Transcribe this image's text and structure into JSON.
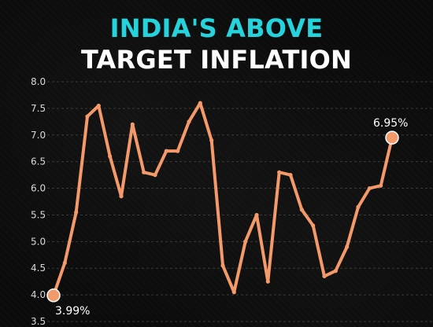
{
  "title": {
    "line1": "INDIA'S ABOVE",
    "line2": "TARGET INFLATION"
  },
  "colors": {
    "background": "#0b0b0b",
    "title_accent": "#25d3dc",
    "title_main": "#ffffff",
    "series": "#f4996a",
    "grid": "#3a3a3a",
    "tick_text": "#d9d9d9"
  },
  "chart_data": {
    "type": "line",
    "title": "INDIA'S ABOVE TARGET INFLATION",
    "xlabel": "",
    "ylabel": "",
    "ylim": [
      3.5,
      8.0
    ],
    "y_ticks": [
      "8.0",
      "7.5",
      "7.0",
      "6.5",
      "6.0",
      "5.5",
      "5.0",
      "4.5",
      "4.0",
      "3.5"
    ],
    "grid": true,
    "legend": "none",
    "series": [
      {
        "values": [
          3.99,
          4.6,
          5.55,
          7.35,
          7.55,
          6.6,
          5.85,
          7.2,
          6.3,
          6.25,
          6.7,
          6.7,
          7.25,
          7.6,
          6.9,
          4.55,
          4.05,
          5.0,
          5.5,
          4.25,
          6.3,
          6.25,
          5.6,
          5.3,
          4.35,
          4.45,
          4.9,
          5.65,
          6.0,
          6.05,
          6.95
        ]
      }
    ],
    "annotations": [
      {
        "index": 0,
        "label": "3.99%"
      },
      {
        "index": 30,
        "label": "6.95%"
      }
    ]
  }
}
